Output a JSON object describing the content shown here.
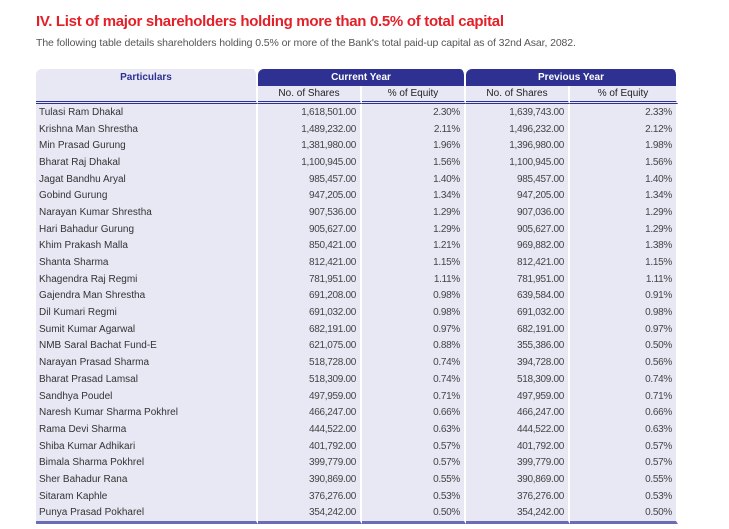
{
  "title": "IV. List of major shareholders holding more than 0.5% of total capital",
  "subtitle": "The following table details shareholders holding 0.5% or more of the Bank's total paid-up capital as of 32nd Asar, 2082.",
  "table": {
    "headers": {
      "particulars": "Particulars",
      "current_year": "Current Year",
      "previous_year": "Previous Year",
      "shares": "No. of Shares",
      "equity": "% of Equity"
    },
    "rows": [
      [
        "Tulasi Ram Dhakal",
        "1,618,501.00",
        "2.30%",
        "1,639,743.00",
        "2.33%"
      ],
      [
        "Krishna Man Shrestha",
        "1,489,232.00",
        "2.11%",
        "1,496,232.00",
        "2.12%"
      ],
      [
        "Min Prasad Gurung",
        "1,381,980.00",
        "1.96%",
        "1,396,980.00",
        "1.98%"
      ],
      [
        "Bharat Raj Dhakal",
        "1,100,945.00",
        "1.56%",
        "1,100,945.00",
        "1.56%"
      ],
      [
        "Jagat Bandhu Aryal",
        "985,457.00",
        "1.40%",
        "985,457.00",
        "1.40%"
      ],
      [
        "Gobind Gurung",
        "947,205.00",
        "1.34%",
        "947,205.00",
        "1.34%"
      ],
      [
        "Narayan Kumar Shrestha",
        "907,536.00",
        "1.29%",
        "907,036.00",
        "1.29%"
      ],
      [
        "Hari Bahadur Gurung",
        "905,627.00",
        "1.29%",
        "905,627.00",
        "1.29%"
      ],
      [
        "Khim Prakash Malla",
        "850,421.00",
        "1.21%",
        "969,882.00",
        "1.38%"
      ],
      [
        "Shanta Sharma",
        "812,421.00",
        "1.15%",
        "812,421.00",
        "1.15%"
      ],
      [
        "Khagendra Raj Regmi",
        "781,951.00",
        "1.11%",
        "781,951.00",
        "1.11%"
      ],
      [
        "Gajendra Man Shrestha",
        "691,208.00",
        "0.98%",
        "639,584.00",
        "0.91%"
      ],
      [
        "Dil Kumari Regmi",
        "691,032.00",
        "0.98%",
        "691,032.00",
        "0.98%"
      ],
      [
        "Sumit Kumar Agarwal",
        "682,191.00",
        "0.97%",
        "682,191.00",
        "0.97%"
      ],
      [
        "NMB Saral Bachat Fund-E",
        "621,075.00",
        "0.88%",
        "355,386.00",
        "0.50%"
      ],
      [
        "Narayan Prasad Sharma",
        "518,728.00",
        "0.74%",
        "394,728.00",
        "0.56%"
      ],
      [
        "Bharat Prasad Lamsal",
        "518,309.00",
        "0.74%",
        "518,309.00",
        "0.74%"
      ],
      [
        "Sandhya Poudel",
        "497,959.00",
        "0.71%",
        "497,959.00",
        "0.71%"
      ],
      [
        "Naresh Kumar Sharma Pokhrel",
        "466,247.00",
        "0.66%",
        "466,247.00",
        "0.66%"
      ],
      [
        "Rama Devi Sharma",
        "444,522.00",
        "0.63%",
        "444,522.00",
        "0.63%"
      ],
      [
        "Shiba Kumar Adhikari",
        "401,792.00",
        "0.57%",
        "401,792.00",
        "0.57%"
      ],
      [
        "Bimala Sharma Pokhrel",
        "399,779.00",
        "0.57%",
        "399,779.00",
        "0.57%"
      ],
      [
        "Sher Bahadur Rana",
        "390,869.00",
        "0.55%",
        "390,869.00",
        "0.55%"
      ],
      [
        "Sitaram Kaphle",
        "376,276.00",
        "0.53%",
        "376,276.00",
        "0.53%"
      ],
      [
        "Punya Prasad Pokharel",
        "354,242.00",
        "0.50%",
        "354,242.00",
        "0.50%"
      ]
    ]
  }
}
